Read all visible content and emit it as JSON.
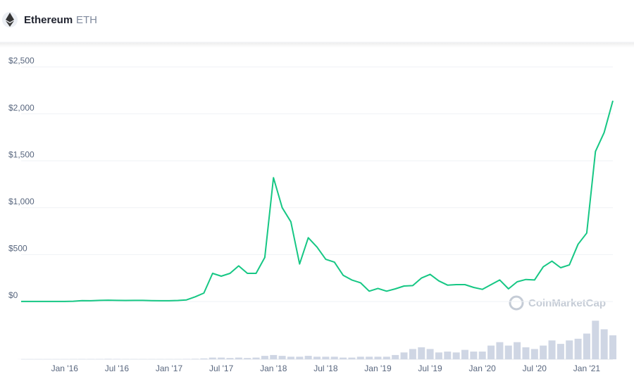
{
  "header": {
    "name": "Ethereum",
    "symbol": "ETH"
  },
  "watermark": "CoinMarketCap",
  "chart_data": {
    "type": "line",
    "x": [
      "2015-08",
      "2015-09",
      "2015-10",
      "2015-11",
      "2015-12",
      "2016-01",
      "2016-02",
      "2016-03",
      "2016-04",
      "2016-05",
      "2016-06",
      "2016-07",
      "2016-08",
      "2016-09",
      "2016-10",
      "2016-11",
      "2016-12",
      "2017-01",
      "2017-02",
      "2017-03",
      "2017-04",
      "2017-05",
      "2017-06",
      "2017-07",
      "2017-08",
      "2017-09",
      "2017-10",
      "2017-11",
      "2017-12",
      "2018-01",
      "2018-02",
      "2018-03",
      "2018-04",
      "2018-05",
      "2018-06",
      "2018-07",
      "2018-08",
      "2018-09",
      "2018-10",
      "2018-11",
      "2018-12",
      "2019-01",
      "2019-02",
      "2019-03",
      "2019-04",
      "2019-05",
      "2019-06",
      "2019-07",
      "2019-08",
      "2019-09",
      "2019-10",
      "2019-11",
      "2019-12",
      "2020-01",
      "2020-02",
      "2020-03",
      "2020-04",
      "2020-05",
      "2020-06",
      "2020-07",
      "2020-08",
      "2020-09",
      "2020-10",
      "2020-11",
      "2020-12",
      "2021-01",
      "2021-02",
      "2021-03",
      "2021-04"
    ],
    "series": [
      {
        "name": "Price",
        "color": "#16c784",
        "values": [
          1,
          1,
          0.6,
          1,
          1,
          1,
          3,
          10,
          8,
          12,
          14,
          12,
          11,
          12,
          12,
          10,
          8,
          8,
          11,
          17,
          50,
          90,
          300,
          270,
          300,
          380,
          300,
          300,
          470,
          1320,
          1000,
          850,
          400,
          680,
          580,
          450,
          420,
          280,
          230,
          200,
          110,
          140,
          110,
          135,
          165,
          170,
          250,
          290,
          220,
          175,
          180,
          180,
          150,
          130,
          180,
          230,
          135,
          210,
          235,
          230,
          370,
          430,
          360,
          390,
          610,
          730,
          1600,
          1800,
          2140
        ]
      },
      {
        "name": "Volume",
        "color": "#cfd6e4",
        "axis": "y2",
        "values": [
          0.1,
          0.1,
          0.1,
          0.1,
          0.1,
          0.1,
          0.2,
          0.3,
          0.3,
          0.3,
          0.5,
          0.4,
          0.2,
          0.2,
          0.2,
          0.2,
          0.2,
          0.2,
          0.2,
          0.4,
          0.6,
          1,
          2,
          2,
          1.5,
          2,
          1.5,
          2,
          4,
          5,
          4,
          3,
          3,
          4,
          3,
          3,
          3,
          2,
          2,
          3,
          3,
          3,
          3,
          5,
          8,
          12,
          14,
          12,
          8,
          9,
          8,
          11,
          9,
          9,
          16,
          20,
          16,
          20,
          14,
          12,
          16,
          22,
          18,
          22,
          24,
          30,
          45,
          35,
          28
        ]
      }
    ],
    "xlim": [
      "2015-08",
      "2021-04"
    ],
    "xticks": [
      {
        "value": "2016-01",
        "label": "Jan '16"
      },
      {
        "value": "2016-07",
        "label": "Jul '16"
      },
      {
        "value": "2017-01",
        "label": "Jan '17"
      },
      {
        "value": "2017-07",
        "label": "Jul '17"
      },
      {
        "value": "2018-01",
        "label": "Jan '18"
      },
      {
        "value": "2018-07",
        "label": "Jul '18"
      },
      {
        "value": "2019-01",
        "label": "Jan '19"
      },
      {
        "value": "2019-07",
        "label": "Jul '19"
      },
      {
        "value": "2020-01",
        "label": "Jan '20"
      },
      {
        "value": "2020-07",
        "label": "Jul '20"
      },
      {
        "value": "2021-01",
        "label": "Jan '21"
      }
    ],
    "ylim": [
      0,
      2500
    ],
    "yticks": [
      {
        "value": 0,
        "label": "$0"
      },
      {
        "value": 500,
        "label": "$500"
      },
      {
        "value": 1000,
        "label": "$1,000"
      },
      {
        "value": 1500,
        "label": "$1,500"
      },
      {
        "value": 2000,
        "label": "$2,000"
      },
      {
        "value": 2500,
        "label": "$2,500"
      }
    ],
    "y2lim": [
      0,
      60
    ],
    "grid": true
  }
}
